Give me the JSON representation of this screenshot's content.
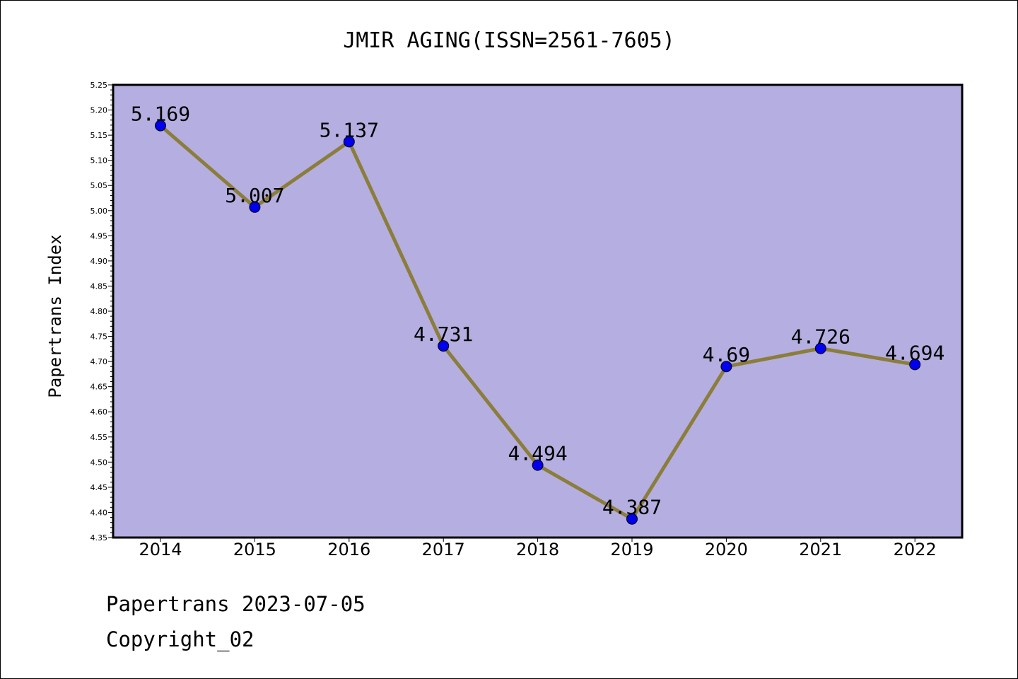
{
  "chart_data": {
    "type": "line",
    "title": "JMIR AGING(ISSN=2561-7605)",
    "xlabel": "",
    "ylabel": "Papertrans Index",
    "categories": [
      "2014",
      "2015",
      "2016",
      "2017",
      "2018",
      "2019",
      "2020",
      "2021",
      "2022"
    ],
    "series": [
      {
        "values": [
          5.169,
          5.007,
          5.137,
          4.731,
          4.494,
          4.387,
          4.69,
          4.726,
          4.694
        ],
        "data_labels": [
          "5.169",
          "5.007",
          "5.137",
          "4.731",
          "4.494",
          "4.387",
          "4.69",
          "4.726",
          "4.694"
        ]
      }
    ],
    "ylim": [
      4.35,
      5.25
    ],
    "yticks": [
      "4.35",
      "4.40",
      "4.45",
      "4.50",
      "4.55",
      "4.60",
      "4.65",
      "4.70",
      "4.75",
      "4.80",
      "4.85",
      "4.90",
      "4.95",
      "5.00",
      "5.05",
      "5.10",
      "5.15",
      "5.20",
      "5.25"
    ],
    "grid": false,
    "legend": "none",
    "colors": {
      "plot_background": "#b4aee1",
      "line": "#8b7d3a",
      "marker": "#0000ee"
    }
  },
  "footer": {
    "line1": "Papertrans 2023-07-05",
    "line2": "Copyright_02"
  }
}
